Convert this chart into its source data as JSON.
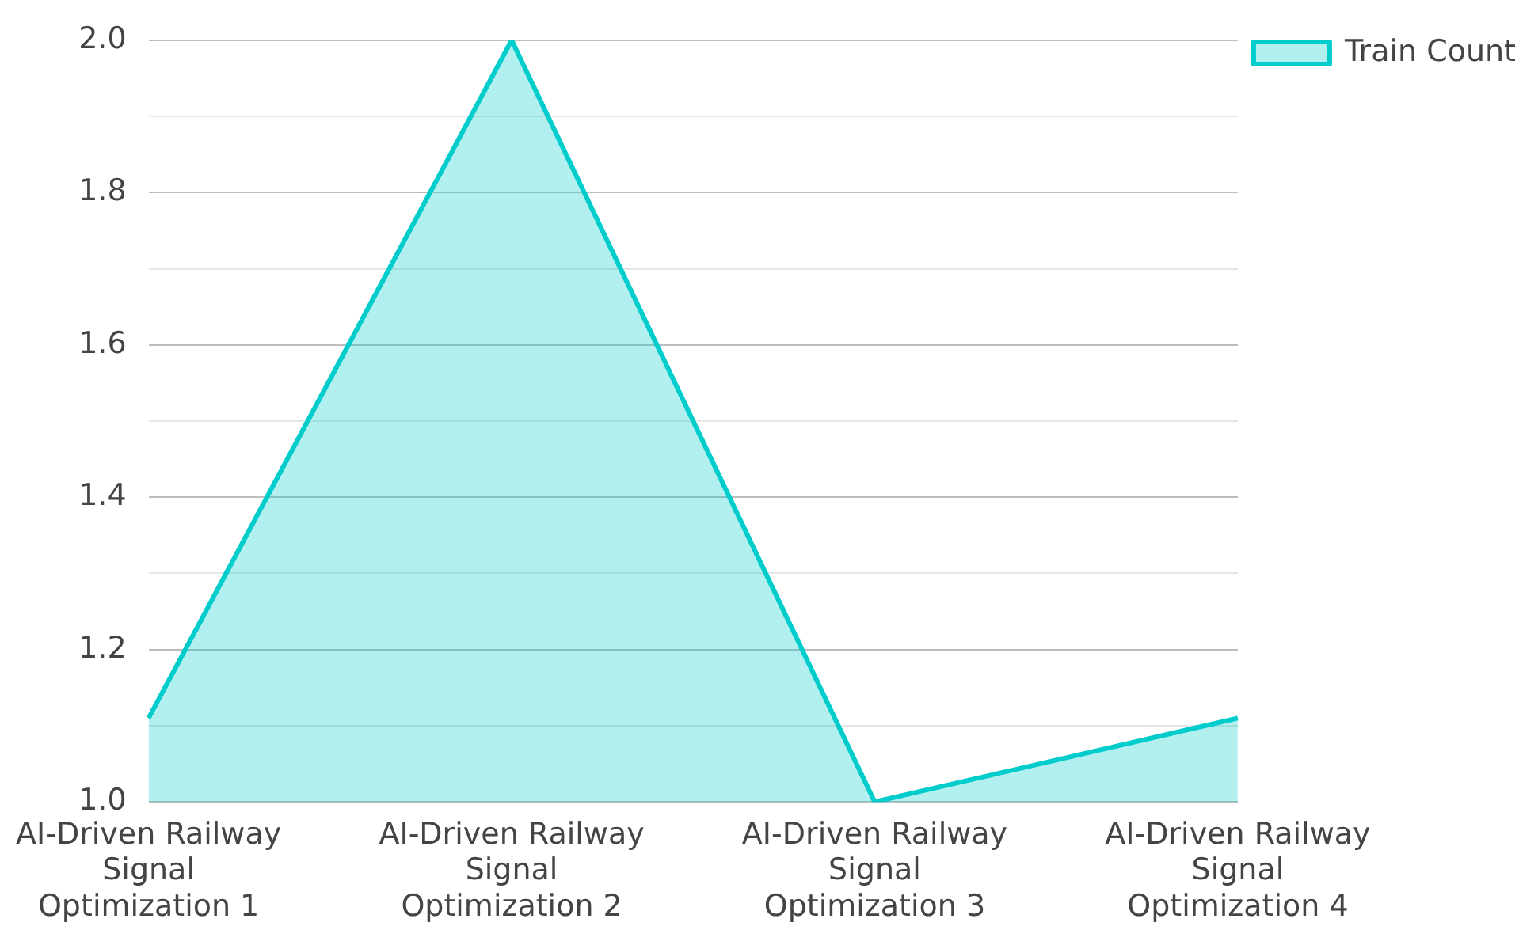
{
  "chart_data": {
    "type": "area",
    "categories": [
      "AI-Driven Railway Signal Optimization 1",
      "AI-Driven Railway Signal Optimization 2",
      "AI-Driven Railway Signal Optimization 3",
      "AI-Driven Railway Signal Optimization 4"
    ],
    "series": [
      {
        "name": "Train Count",
        "color": "#00cccc",
        "values": [
          1.11,
          2.0,
          1.0,
          1.11
        ]
      }
    ],
    "ylim": [
      1.0,
      2.0
    ],
    "yticks": [
      {
        "value": 1.0,
        "label": "1.0"
      },
      {
        "value": 1.1,
        "label": null
      },
      1.2,
      {
        "value": 1.3,
        "label": null
      },
      1.4,
      {
        "value": 1.5,
        "label": null
      },
      1.6,
      {
        "value": 1.7,
        "label": null
      },
      1.8,
      {
        "value": 1.9,
        "label": null
      },
      {
        "value": 2.0,
        "label": "2.0"
      }
    ],
    "grid": "y",
    "legend": "top right",
    "marker": "none",
    "line_style": "solid"
  }
}
